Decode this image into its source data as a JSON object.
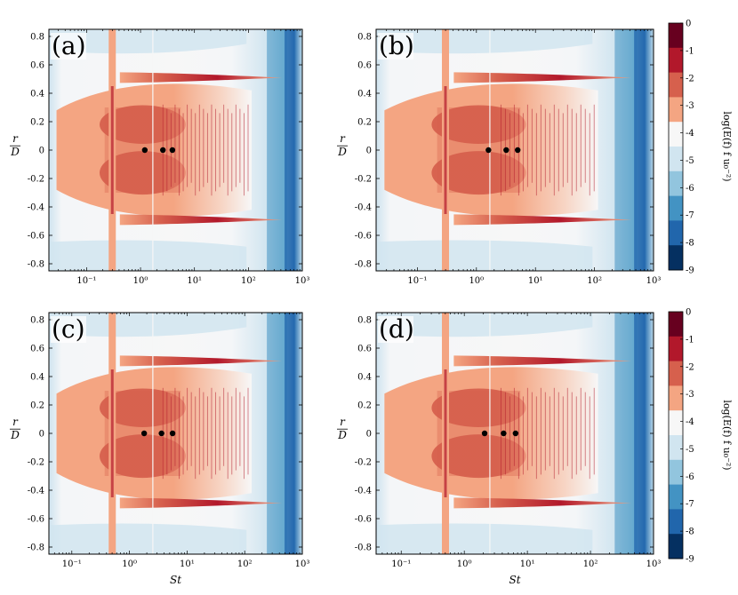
{
  "figure": {
    "colorbar_label": "log(E(f) f u₀⁻²)",
    "ylabel_num": "r",
    "ylabel_den": "D",
    "xlabel": "St"
  },
  "chart_data": [
    {
      "type": "heatmap",
      "panel_label": "(a)",
      "xscale": "log",
      "xlim": [
        0.02,
        1000
      ],
      "ylim": [
        -0.85,
        0.85
      ],
      "x_ticks": [
        "10⁻¹",
        "10⁰",
        "10¹",
        "10²",
        "10³"
      ],
      "y_ticks": [
        "0.8",
        "0.6",
        "0.4",
        "0.2",
        "0",
        "-0.2",
        "-0.4",
        "-0.6",
        "-0.8"
      ],
      "markers": [
        {
          "St": 1.2,
          "r_over_D": 0
        },
        {
          "St": 2.6,
          "r_over_D": 0
        },
        {
          "St": 3.9,
          "r_over_D": 0
        }
      ],
      "xlabel": "",
      "colorbar": false
    },
    {
      "type": "heatmap",
      "panel_label": "(b)",
      "xscale": "log",
      "xlim": [
        0.02,
        1000
      ],
      "ylim": [
        -0.85,
        0.85
      ],
      "x_ticks": [
        "10⁻¹",
        "10⁰",
        "10¹",
        "10²",
        "10³"
      ],
      "y_ticks": [
        "0.8",
        "0.6",
        "0.4",
        "0.2",
        "0",
        "-0.2",
        "-0.4",
        "-0.6",
        "-0.8"
      ],
      "markers": [
        {
          "St": 1.6,
          "r_over_D": 0
        },
        {
          "St": 3.2,
          "r_over_D": 0
        },
        {
          "St": 5.0,
          "r_over_D": 0
        }
      ],
      "xlabel": "",
      "colorbar": true
    },
    {
      "type": "heatmap",
      "panel_label": "(c)",
      "xscale": "log",
      "xlim": [
        0.04,
        1000
      ],
      "ylim": [
        -0.85,
        0.85
      ],
      "x_ticks": [
        "10⁻¹",
        "10⁰",
        "10¹",
        "10²",
        "10³"
      ],
      "y_ticks": [
        "0.8",
        "0.6",
        "0.4",
        "0.2",
        "0",
        "-0.2",
        "-0.4",
        "-0.6",
        "-0.8"
      ],
      "markers": [
        {
          "St": 1.8,
          "r_over_D": 0
        },
        {
          "St": 3.6,
          "r_over_D": 0
        },
        {
          "St": 5.6,
          "r_over_D": 0
        }
      ],
      "xlabel": "St",
      "colorbar": false
    },
    {
      "type": "heatmap",
      "panel_label": "(d)",
      "xscale": "log",
      "xlim": [
        0.04,
        1000
      ],
      "ylim": [
        -0.85,
        0.85
      ],
      "x_ticks": [
        "10⁻¹",
        "10⁰",
        "10¹",
        "10²",
        "10³"
      ],
      "y_ticks": [
        "0.8",
        "0.6",
        "0.4",
        "0.2",
        "0",
        "-0.2",
        "-0.4",
        "-0.6",
        "-0.8"
      ],
      "markers": [
        {
          "St": 2.1,
          "r_over_D": 0
        },
        {
          "St": 4.2,
          "r_over_D": 0
        },
        {
          "St": 6.5,
          "r_over_D": 0
        }
      ],
      "xlabel": "St",
      "colorbar": true
    }
  ],
  "colorbar": {
    "levels": [
      0,
      -1,
      -2,
      -3,
      -4,
      -5,
      -6,
      -7,
      -8,
      -9
    ],
    "tick_labels": [
      "0",
      "-1",
      "-2",
      "-3",
      "-4",
      "-5",
      "-6",
      "-7",
      "-8",
      "-9"
    ],
    "colors": [
      "#67001f",
      "#b2182b",
      "#d6604d",
      "#f4a582",
      "#f7f7f7",
      "#d1e5f0",
      "#92c5de",
      "#4393c3",
      "#2166ac",
      "#053061"
    ]
  }
}
